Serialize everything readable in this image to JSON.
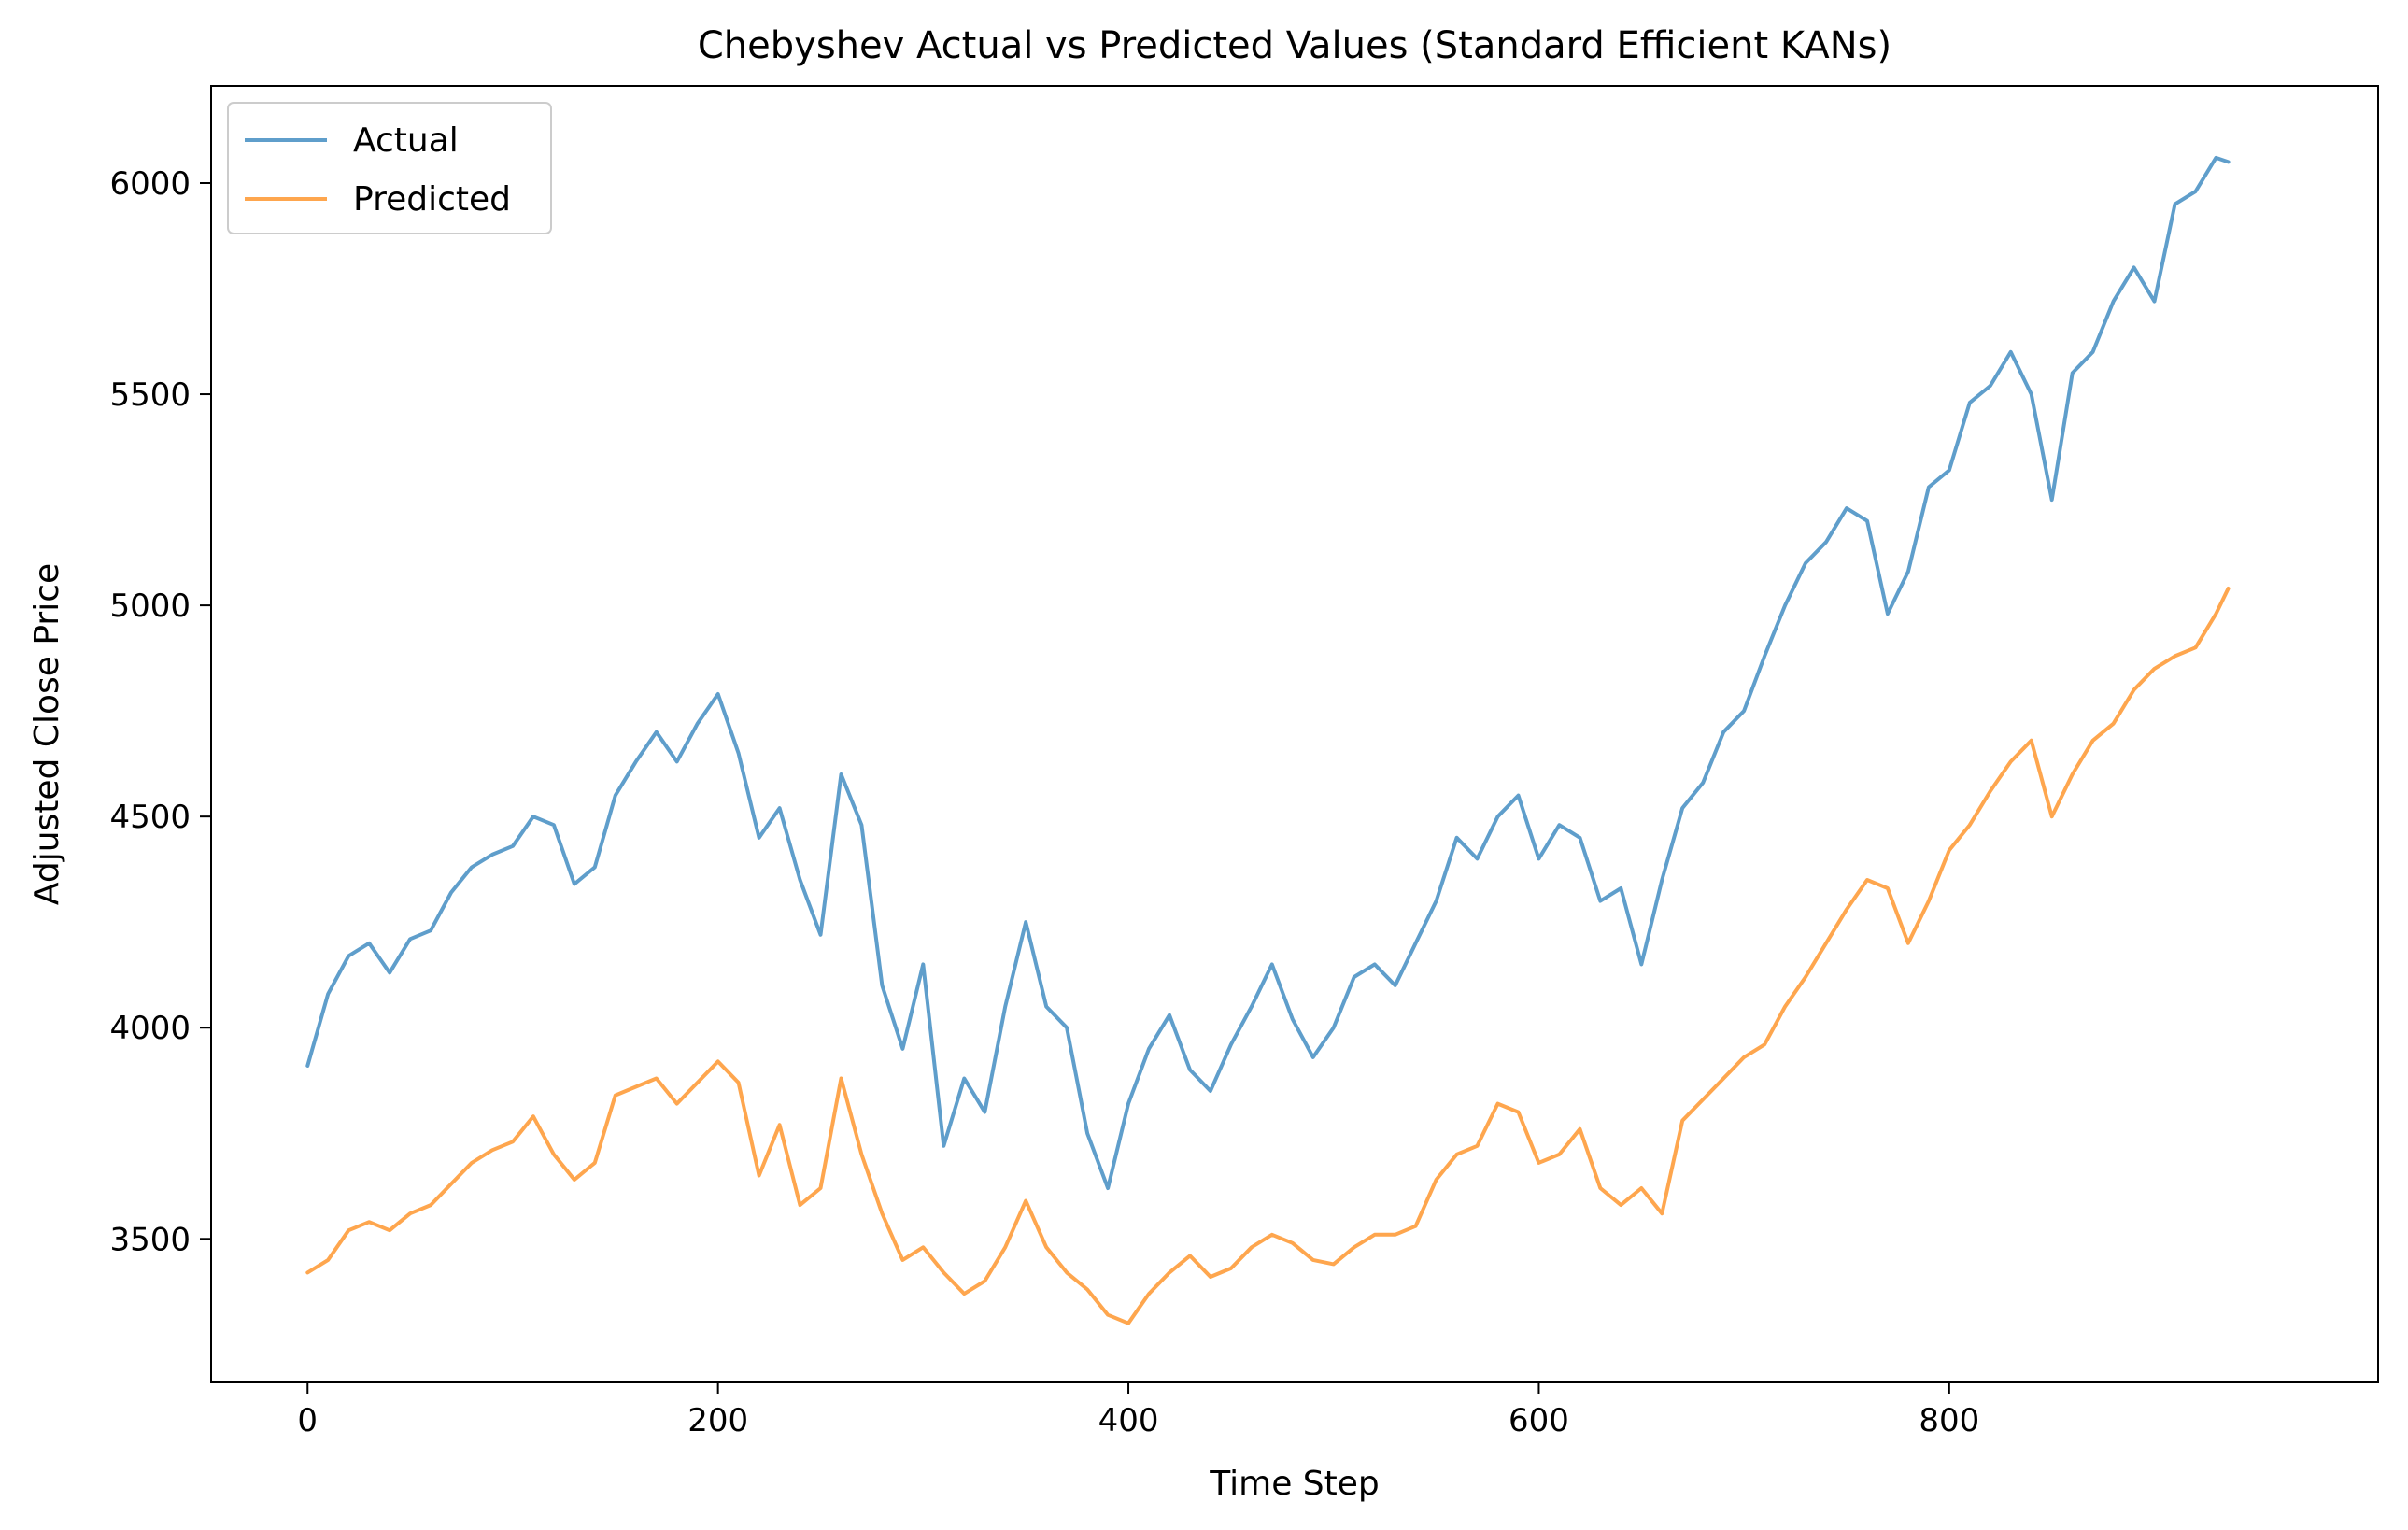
{
  "chart_data": {
    "type": "line",
    "title": "Chebyshev Actual vs Predicted Values (Standard Efficient KANs)",
    "xlabel": "Time Step",
    "ylabel": "Adjusted Close Price",
    "xlim": [
      -47,
      1009
    ],
    "ylim": [
      3160,
      6230
    ],
    "xticks": [
      0,
      200,
      400,
      600,
      800
    ],
    "yticks": [
      3500,
      4000,
      4500,
      5000,
      5500,
      6000
    ],
    "xtick_labels": [
      "0",
      "200",
      "400",
      "600",
      "800"
    ],
    "ytick_labels": [
      "3500",
      "4000",
      "4500",
      "5000",
      "5500",
      "6000"
    ],
    "legend_position": "top-left",
    "grid": false,
    "series": [
      {
        "name": "Actual",
        "color": "#5f9ecb",
        "x": [
          0,
          10,
          20,
          30,
          40,
          50,
          60,
          70,
          80,
          90,
          100,
          110,
          120,
          130,
          140,
          150,
          160,
          170,
          180,
          190,
          200,
          210,
          220,
          230,
          240,
          250,
          260,
          270,
          280,
          290,
          300,
          310,
          320,
          330,
          340,
          350,
          360,
          370,
          380,
          390,
          400,
          410,
          420,
          430,
          440,
          450,
          460,
          470,
          480,
          490,
          500,
          510,
          520,
          530,
          540,
          550,
          560,
          570,
          580,
          590,
          600,
          610,
          620,
          630,
          640,
          650,
          660,
          670,
          680,
          690,
          700,
          710,
          720,
          730,
          740,
          750,
          760,
          770,
          780,
          790,
          800,
          810,
          820,
          830,
          840,
          850,
          860,
          870,
          880,
          890,
          900,
          910,
          920,
          930,
          936
        ],
        "values": [
          3910,
          4080,
          4170,
          4200,
          4130,
          4210,
          4230,
          4320,
          4380,
          4410,
          4430,
          4500,
          4480,
          4340,
          4380,
          4550,
          4630,
          4700,
          4630,
          4720,
          4790,
          4650,
          4450,
          4520,
          4350,
          4220,
          4600,
          4480,
          4100,
          3950,
          4150,
          3720,
          3880,
          3800,
          4050,
          4250,
          4050,
          4000,
          3750,
          3620,
          3820,
          3950,
          4030,
          3900,
          3850,
          3960,
          4050,
          4150,
          4020,
          3930,
          4000,
          4120,
          4150,
          4100,
          4200,
          4300,
          4450,
          4400,
          4500,
          4550,
          4400,
          4480,
          4450,
          4300,
          4330,
          4150,
          4350,
          4520,
          4580,
          4700,
          4750,
          4880,
          5000,
          5100,
          5150,
          5230,
          5200,
          4980,
          5080,
          5280,
          5320,
          5480,
          5520,
          5600,
          5500,
          5250,
          5550,
          5600,
          5720,
          5800,
          5720,
          5950,
          5980,
          6060,
          6050
        ]
      },
      {
        "name": "Predicted",
        "color": "#fea64e",
        "x": [
          0,
          10,
          20,
          30,
          40,
          50,
          60,
          70,
          80,
          90,
          100,
          110,
          120,
          130,
          140,
          150,
          160,
          170,
          180,
          190,
          200,
          210,
          220,
          230,
          240,
          250,
          260,
          270,
          280,
          290,
          300,
          310,
          320,
          330,
          340,
          350,
          360,
          370,
          380,
          390,
          400,
          410,
          420,
          430,
          440,
          450,
          460,
          470,
          480,
          490,
          500,
          510,
          520,
          530,
          540,
          550,
          560,
          570,
          580,
          590,
          600,
          610,
          620,
          630,
          640,
          650,
          660,
          670,
          680,
          690,
          700,
          710,
          720,
          730,
          740,
          750,
          760,
          770,
          780,
          790,
          800,
          810,
          820,
          830,
          840,
          850,
          860,
          870,
          880,
          890,
          900,
          910,
          920,
          930,
          936
        ],
        "values": [
          3420,
          3450,
          3520,
          3540,
          3520,
          3560,
          3580,
          3630,
          3680,
          3710,
          3730,
          3790,
          3700,
          3640,
          3680,
          3840,
          3860,
          3880,
          3820,
          3870,
          3920,
          3870,
          3650,
          3770,
          3580,
          3620,
          3880,
          3700,
          3560,
          3450,
          3480,
          3420,
          3370,
          3400,
          3480,
          3590,
          3480,
          3420,
          3380,
          3320,
          3300,
          3370,
          3420,
          3460,
          3410,
          3430,
          3480,
          3510,
          3490,
          3450,
          3440,
          3480,
          3510,
          3510,
          3530,
          3640,
          3700,
          3720,
          3820,
          3800,
          3680,
          3700,
          3760,
          3620,
          3580,
          3620,
          3560,
          3780,
          3830,
          3880,
          3930,
          3960,
          4050,
          4120,
          4200,
          4280,
          4350,
          4330,
          4200,
          4300,
          4420,
          4480,
          4560,
          4630,
          4680,
          4500,
          4600,
          4680,
          4720,
          4800,
          4850,
          4880,
          4900,
          4980,
          5040
        ]
      }
    ]
  }
}
